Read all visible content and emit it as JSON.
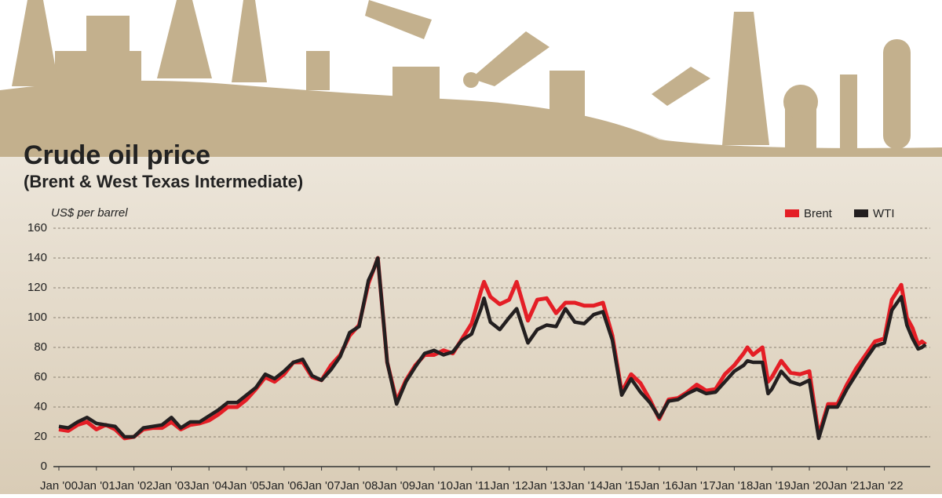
{
  "chart_data": {
    "type": "line",
    "title": "Crude oil price",
    "subtitle": "(Brent & West Texas Intermediate)",
    "y_label": "US$ per barrel",
    "x": [
      2000.0,
      2000.25,
      2000.5,
      2000.75,
      2001.0,
      2001.25,
      2001.5,
      2001.75,
      2002.0,
      2002.25,
      2002.5,
      2002.75,
      2003.0,
      2003.25,
      2003.5,
      2003.75,
      2004.0,
      2004.25,
      2004.5,
      2004.75,
      2005.0,
      2005.25,
      2005.5,
      2005.75,
      2006.0,
      2006.25,
      2006.5,
      2006.75,
      2007.0,
      2007.25,
      2007.5,
      2007.75,
      2008.0,
      2008.25,
      2008.4,
      2008.5,
      2008.75,
      2009.0,
      2009.25,
      2009.5,
      2009.75,
      2010.0,
      2010.25,
      2010.5,
      2010.75,
      2011.0,
      2011.25,
      2011.33,
      2011.5,
      2011.75,
      2012.0,
      2012.2,
      2012.5,
      2012.75,
      2013.0,
      2013.25,
      2013.5,
      2013.75,
      2014.0,
      2014.25,
      2014.5,
      2014.75,
      2015.0,
      2015.25,
      2015.5,
      2015.75,
      2016.0,
      2016.25,
      2016.5,
      2016.75,
      2017.0,
      2017.25,
      2017.5,
      2017.75,
      2018.0,
      2018.25,
      2018.35,
      2018.5,
      2018.75,
      2018.9,
      2019.0,
      2019.25,
      2019.5,
      2019.75,
      2020.0,
      2020.25,
      2020.5,
      2020.75,
      2021.0,
      2021.25,
      2021.5,
      2021.75,
      2022.0,
      2022.2,
      2022.45,
      2022.6,
      2022.75,
      2022.9,
      2023.0,
      2023.1
    ],
    "series": [
      {
        "name": "Brent",
        "color": "#e41e26",
        "values": [
          25,
          24,
          28,
          30,
          25,
          28,
          25,
          19,
          20,
          25,
          26,
          26,
          30,
          25,
          28,
          29,
          31,
          35,
          40,
          40,
          45,
          52,
          60,
          57,
          62,
          70,
          70,
          60,
          58,
          68,
          75,
          88,
          95,
          123,
          133,
          140,
          70,
          44,
          58,
          68,
          75,
          75,
          78,
          76,
          86,
          96,
          118,
          124,
          114,
          109,
          112,
          124,
          98,
          112,
          113,
          103,
          110,
          110,
          108,
          108,
          110,
          88,
          50,
          62,
          56,
          45,
          32,
          45,
          46,
          50,
          55,
          51,
          52,
          62,
          68,
          76,
          80,
          75,
          80,
          57,
          60,
          71,
          63,
          62,
          64,
          21,
          42,
          42,
          55,
          66,
          75,
          84,
          86,
          112,
          122,
          100,
          93,
          82,
          84,
          82
        ]
      },
      {
        "name": "WTI",
        "color": "#231f20",
        "values": [
          27,
          26,
          30,
          33,
          29,
          28,
          27,
          20,
          20,
          26,
          27,
          28,
          33,
          26,
          30,
          30,
          34,
          38,
          43,
          43,
          48,
          53,
          62,
          59,
          64,
          70,
          72,
          61,
          58,
          65,
          74,
          90,
          94,
          125,
          133,
          140,
          70,
          42,
          57,
          67,
          76,
          78,
          75,
          77,
          85,
          89,
          106,
          113,
          97,
          92,
          100,
          106,
          83,
          92,
          95,
          94,
          106,
          97,
          96,
          102,
          104,
          85,
          48,
          59,
          50,
          43,
          33,
          44,
          45,
          49,
          52,
          49,
          50,
          57,
          64,
          68,
          71,
          70,
          70,
          49,
          52,
          64,
          57,
          55,
          58,
          19,
          40,
          40,
          52,
          62,
          72,
          81,
          83,
          105,
          114,
          95,
          86,
          79,
          80,
          82
        ]
      }
    ],
    "xlim": [
      2000,
      2023.2
    ],
    "xticks": [
      {
        "value": 2000,
        "label": "Jan '00"
      },
      {
        "value": 2001,
        "label": "Jan '01"
      },
      {
        "value": 2002,
        "label": "Jan '02"
      },
      {
        "value": 2003,
        "label": "Jan '03"
      },
      {
        "value": 2004,
        "label": "Jan '04"
      },
      {
        "value": 2005,
        "label": "Jan '05"
      },
      {
        "value": 2006,
        "label": "Jan '06"
      },
      {
        "value": 2007,
        "label": "Jan '07"
      },
      {
        "value": 2008,
        "label": "Jan '08"
      },
      {
        "value": 2009,
        "label": "Jan '09"
      },
      {
        "value": 2010,
        "label": "Jan '10"
      },
      {
        "value": 2011,
        "label": "Jan '11"
      },
      {
        "value": 2012,
        "label": "Jan '12"
      },
      {
        "value": 2013,
        "label": "Jan '13"
      },
      {
        "value": 2014,
        "label": "Jan '14"
      },
      {
        "value": 2015,
        "label": "Jan '15"
      },
      {
        "value": 2016,
        "label": "Jan '16"
      },
      {
        "value": 2017,
        "label": "Jan '17"
      },
      {
        "value": 2018,
        "label": "Jan '18"
      },
      {
        "value": 2019,
        "label": "Jan '19"
      },
      {
        "value": 2020,
        "label": "Jan '20"
      },
      {
        "value": 2021,
        "label": "Jan '21"
      },
      {
        "value": 2022,
        "label": "Jan '22"
      }
    ],
    "ylim": [
      0,
      160
    ],
    "yticks": [
      0,
      20,
      40,
      60,
      80,
      100,
      120,
      140,
      160
    ],
    "grid": true,
    "legend": "top-right"
  }
}
